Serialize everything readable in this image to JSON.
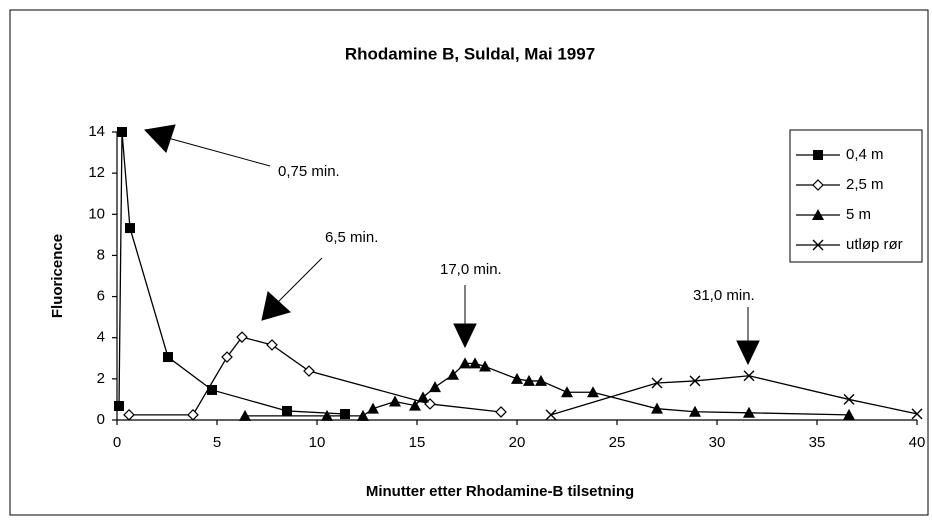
{
  "chart_data": {
    "type": "line",
    "title": "Rhodamine B, Suldal, Mai 1997",
    "xlabel": "Minutter etter Rhodamine-B tilsetning",
    "ylabel": "Fluoricence",
    "xlim": [
      0,
      40
    ],
    "xticks": [
      0,
      5,
      10,
      15,
      20,
      25,
      30,
      35,
      40
    ],
    "ylim": [
      0,
      14
    ],
    "yticks": [
      0,
      2,
      4,
      6,
      8,
      10,
      12,
      14
    ],
    "grid": false,
    "legend": "upper right",
    "series": [
      {
        "name": "0,4 m",
        "color": "#000000",
        "marker": "square",
        "x": [
          0.1,
          0.25,
          0.65,
          2.55,
          4.75,
          8.5,
          11.4
        ],
        "values": [
          0.68,
          14,
          9.33,
          3.06,
          1.46,
          0.44,
          0.29
        ]
      },
      {
        "name": "2,5 m",
        "color": "#000000",
        "marker": "diamond",
        "x": [
          0.6,
          3.8,
          5.5,
          6.25,
          7.75,
          9.6,
          15.65,
          19.2
        ],
        "values": [
          0.25,
          0.25,
          3.06,
          4.03,
          3.65,
          2.38,
          0.78,
          0.39
        ]
      },
      {
        "name": "5 m",
        "color": "#000000",
        "marker": "triangle",
        "x": [
          6.4,
          10.5,
          12.3,
          12.8,
          13.9,
          14.9,
          15.3,
          15.9,
          16.8,
          17.4,
          17.9,
          18.4,
          20.0,
          20.6,
          21.2,
          22.5,
          23.8,
          27.0,
          28.9,
          31.6,
          36.6
        ],
        "values": [
          0.2,
          0.2,
          0.2,
          0.55,
          0.9,
          0.7,
          1.1,
          1.6,
          2.2,
          2.75,
          2.75,
          2.6,
          2.0,
          1.9,
          1.9,
          1.35,
          1.35,
          0.55,
          0.4,
          0.35,
          0.25
        ]
      },
      {
        "name": "utløp rør",
        "color": "#000000",
        "marker": "x",
        "x": [
          21.7,
          27.0,
          28.9,
          31.6,
          36.6,
          40
        ],
        "values": [
          0.25,
          1.8,
          1.9,
          2.15,
          1.0,
          0.3
        ]
      }
    ],
    "annotations": [
      "0,75 min.",
      "6,5 min.",
      "17,0 min.",
      "31,0 min."
    ]
  }
}
